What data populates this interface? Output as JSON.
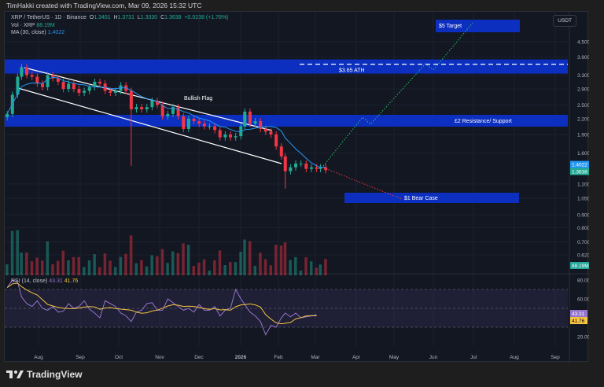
{
  "credit": "TimHakki created with TradingView.com, Mar 09, 2026 15:32 UTC",
  "legend": {
    "symbol": "XRP / TetherUS · 1D · Binance",
    "o_label": "O",
    "o": "1.3401",
    "h_label": "H",
    "h": "1.3731",
    "l_label": "L",
    "l": "1.3330",
    "c_label": "C",
    "c": "1.3638",
    "change": "+0.0238 (+1.78%)",
    "vol_label": "Vol · XRP",
    "vol": "88.19M",
    "ma_label": "MA (30, close)",
    "ma": "1.4022",
    "rsi_label": "RSI (14, close)",
    "rsi": "43.31",
    "rsi_ma": "41.76"
  },
  "currency_button": "USDT",
  "brand": "TradingView",
  "colors": {
    "up": "#22ab94",
    "down": "#f23645",
    "ma": "#2196f3",
    "rsi": "#9575cd",
    "rsi_ma": "#f5c542",
    "zone": "#0c2fbf"
  },
  "annotations": {
    "ath": "$3.65 ATH",
    "resistance": "£2 Resistance/ Support",
    "target": "$5 Target",
    "bear": "$1 Bear Case",
    "flag": "Bullish Flag"
  },
  "chart_data": {
    "type": "candlestick",
    "scale": "log",
    "price_ticks": [
      "4.5000",
      "3.9000",
      "3.3000",
      "2.9000",
      "2.5000",
      "2.2000",
      "1.9000",
      "1.6000",
      "1.2000",
      "1.0500",
      "0.9000",
      "0.8000",
      "0.7000",
      "0.6200"
    ],
    "price_labels": {
      "ma": "1.4022",
      "close": "1.3638",
      "volume": "88.19M"
    },
    "rsi_ticks": [
      "80.00",
      "60.00",
      "20.00"
    ],
    "rsi_labels": {
      "rsi": "43.31",
      "rsi_ma": "41.76"
    },
    "time_ticks": [
      "Aug",
      "Sep",
      "Oct",
      "Nov",
      "Dec",
      "2026",
      "Feb",
      "Mar",
      "Apr",
      "May",
      "Jun",
      "Jul",
      "Aug",
      "Sep"
    ],
    "closes": [
      [
        "2025-07-08",
        2.3
      ],
      [
        "2025-07-12",
        2.75
      ],
      [
        "2025-07-16",
        3.25
      ],
      [
        "2025-07-19",
        3.55
      ],
      [
        "2025-07-23",
        3.3
      ],
      [
        "2025-07-27",
        3.25
      ],
      [
        "2025-07-31",
        3.05
      ],
      [
        "2025-08-04",
        2.95
      ],
      [
        "2025-08-08",
        3.3
      ],
      [
        "2025-08-12",
        3.2
      ],
      [
        "2025-08-16",
        3.1
      ],
      [
        "2025-08-20",
        2.9
      ],
      [
        "2025-08-24",
        3.05
      ],
      [
        "2025-08-28",
        2.9
      ],
      [
        "2025-09-01",
        2.8
      ],
      [
        "2025-09-05",
        2.85
      ],
      [
        "2025-09-09",
        2.95
      ],
      [
        "2025-09-13",
        3.1
      ],
      [
        "2025-09-17",
        3.05
      ],
      [
        "2025-09-21",
        2.85
      ],
      [
        "2025-09-25",
        2.8
      ],
      [
        "2025-09-29",
        2.85
      ],
      [
        "2025-10-03",
        3.0
      ],
      [
        "2025-10-07",
        2.85
      ],
      [
        "2025-10-11",
        2.4
      ],
      [
        "2025-10-15",
        2.45
      ],
      [
        "2025-10-19",
        2.4
      ],
      [
        "2025-10-23",
        2.45
      ],
      [
        "2025-10-27",
        2.6
      ],
      [
        "2025-10-31",
        2.5
      ],
      [
        "2025-11-04",
        2.25
      ],
      [
        "2025-11-08",
        2.3
      ],
      [
        "2025-11-12",
        2.45
      ],
      [
        "2025-11-16",
        2.25
      ],
      [
        "2025-11-20",
        2.0
      ],
      [
        "2025-11-24",
        2.2
      ],
      [
        "2025-11-28",
        2.15
      ],
      [
        "2025-12-02",
        2.1
      ],
      [
        "2025-12-06",
        2.05
      ],
      [
        "2025-12-10",
        2.05
      ],
      [
        "2025-12-14",
        1.98
      ],
      [
        "2025-12-18",
        1.85
      ],
      [
        "2025-12-22",
        1.9
      ],
      [
        "2025-12-26",
        1.85
      ],
      [
        "2025-12-30",
        1.87
      ],
      [
        "2026-01-03",
        2.05
      ],
      [
        "2026-01-06",
        2.35
      ],
      [
        "2026-01-10",
        2.1
      ],
      [
        "2026-01-14",
        2.15
      ],
      [
        "2026-01-18",
        2.0
      ],
      [
        "2026-01-22",
        1.95
      ],
      [
        "2026-01-26",
        1.9
      ],
      [
        "2026-01-30",
        1.7
      ],
      [
        "2026-02-03",
        1.55
      ],
      [
        "2026-02-06",
        1.35
      ],
      [
        "2026-02-10",
        1.4
      ],
      [
        "2026-02-14",
        1.45
      ],
      [
        "2026-02-18",
        1.45
      ],
      [
        "2026-02-22",
        1.38
      ],
      [
        "2026-02-26",
        1.4
      ],
      [
        "2026-03-02",
        1.38
      ],
      [
        "2026-03-05",
        1.4
      ],
      [
        "2026-03-09",
        1.3638
      ]
    ],
    "wicks": [
      [
        "2025-10-10",
        1.42
      ],
      [
        "2026-02-06",
        1.15
      ]
    ],
    "rsi": [
      72,
      80,
      78,
      62,
      55,
      52,
      58,
      50,
      48,
      52,
      46,
      47,
      55,
      50,
      52,
      58,
      49,
      45,
      40,
      58,
      55,
      52,
      45,
      42,
      36,
      46,
      48,
      55,
      56,
      48,
      48,
      60,
      56,
      52,
      48,
      50,
      46,
      54,
      48,
      48,
      52,
      42,
      48,
      50,
      70,
      60,
      54,
      46,
      42,
      36,
      22,
      32,
      30,
      40,
      45,
      41,
      45,
      40,
      41,
      42,
      43.31
    ]
  }
}
